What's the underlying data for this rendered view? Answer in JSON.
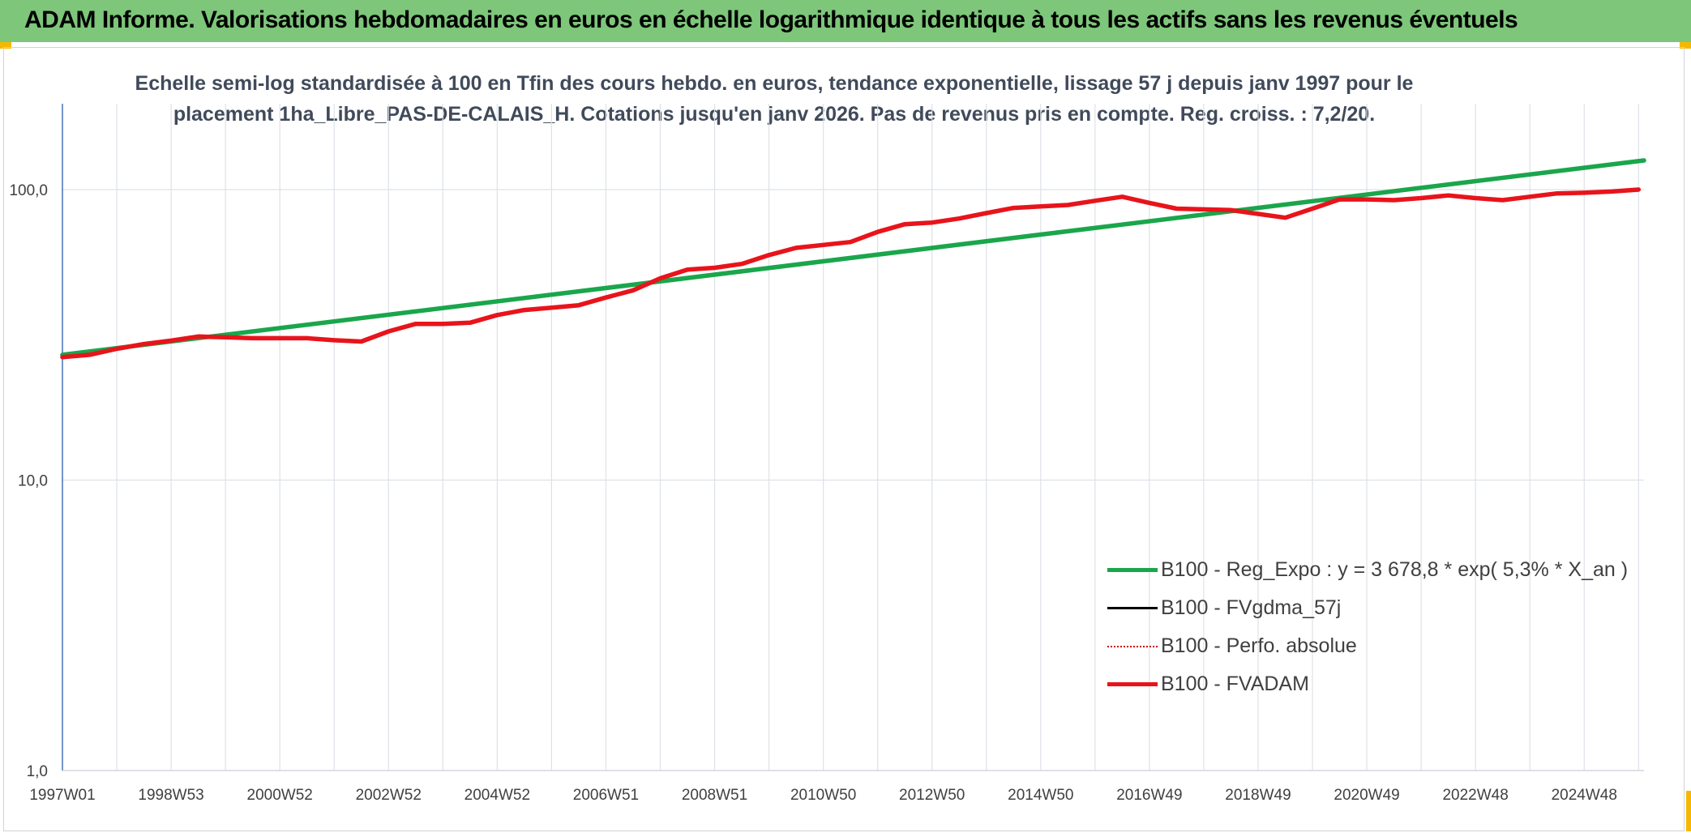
{
  "header": {
    "title": "ADAM Informe. Valorisations hebdomadaires en euros en échelle logarithmique identique à tous les actifs sans les revenus éventuels"
  },
  "colors": {
    "header_bg": "#7dc67a",
    "accent_corner": "#f5b800",
    "reg_expo": "#1aa64b",
    "fvgdma": "#000000",
    "perfo": "#cc0000",
    "fvadam": "#e8141b",
    "grid": "#dde2e8",
    "axis": "#4a72b8"
  },
  "chart_data": {
    "type": "line",
    "title_lines": [
      "Echelle semi-log standardisée à 100 en Tfin des cours hebdo. en euros, tendance exponentielle, lissage 57 j depuis janv 1997 pour le",
      "placement 1ha_Libre_PAS-DE-CALAIS_H. Cotations jusqu'en janv 2026. Pas de revenus pris en compte. Reg. croiss. : 7,2/20."
    ],
    "y_scale": "log",
    "ylim": [
      1,
      200
    ],
    "y_ticks": [
      {
        "value": 1,
        "label": "1,0"
      },
      {
        "value": 10,
        "label": "10,0"
      },
      {
        "value": 100,
        "label": "100,0"
      }
    ],
    "xlim": [
      1997.0,
      2026.1
    ],
    "x_ticks": [
      {
        "pos": 1997.0,
        "label": "1997W01"
      },
      {
        "pos": 1999.0,
        "label": "1998W53"
      },
      {
        "pos": 2001.0,
        "label": "2000W52"
      },
      {
        "pos": 2003.0,
        "label": "2002W52"
      },
      {
        "pos": 2005.0,
        "label": "2004W52"
      },
      {
        "pos": 2007.0,
        "label": "2006W51"
      },
      {
        "pos": 2009.0,
        "label": "2008W51"
      },
      {
        "pos": 2011.0,
        "label": "2010W50"
      },
      {
        "pos": 2013.0,
        "label": "2012W50"
      },
      {
        "pos": 2015.0,
        "label": "2014W50"
      },
      {
        "pos": 2017.0,
        "label": "2016W49"
      },
      {
        "pos": 2019.0,
        "label": "2018W49"
      },
      {
        "pos": 2021.0,
        "label": "2020W49"
      },
      {
        "pos": 2023.0,
        "label": "2022W48"
      },
      {
        "pos": 2025.0,
        "label": "2024W48"
      }
    ],
    "minor_grid_step": 1,
    "series": [
      {
        "name": "B100 - Reg_Expo : y = 3 678,8 * exp( 5,3% *  X_an )",
        "key": "reg_expo",
        "style": "solid",
        "x": [
          1997.0,
          2026.1
        ],
        "y": [
          27.0,
          126.0
        ]
      },
      {
        "name": "B100 - FVgdma_57j",
        "key": "fvgdma",
        "style": "solid",
        "x": [],
        "y": []
      },
      {
        "name": "B100 - Perfo. absolue",
        "key": "perfo",
        "style": "dotted",
        "x": [],
        "y": []
      },
      {
        "name": "B100 - FVADAM",
        "key": "fvadam",
        "style": "solid",
        "x": [
          1997.0,
          1997.5,
          1998.0,
          1998.5,
          1999.0,
          1999.5,
          2000.0,
          2000.5,
          2001.0,
          2001.5,
          2002.0,
          2002.5,
          2003.0,
          2003.5,
          2004.0,
          2004.5,
          2005.0,
          2005.5,
          2006.0,
          2006.5,
          2007.0,
          2007.5,
          2008.0,
          2008.5,
          2009.0,
          2009.5,
          2010.0,
          2010.5,
          2011.0,
          2011.5,
          2012.0,
          2012.5,
          2013.0,
          2013.5,
          2014.0,
          2014.5,
          2015.0,
          2015.5,
          2016.0,
          2016.5,
          2017.0,
          2017.5,
          2018.0,
          2018.5,
          2019.0,
          2019.5,
          2020.0,
          2020.5,
          2021.0,
          2021.5,
          2022.0,
          2022.5,
          2023.0,
          2023.5,
          2024.0,
          2024.5,
          2025.0,
          2025.5,
          2026.0
        ],
        "y": [
          26.5,
          27.0,
          28.3,
          29.4,
          30.2,
          31.2,
          31.0,
          30.8,
          30.8,
          30.8,
          30.3,
          30.0,
          32.5,
          34.5,
          34.5,
          34.8,
          37.0,
          38.5,
          39.2,
          40.0,
          42.5,
          45.0,
          49.5,
          53.0,
          53.8,
          55.5,
          59.5,
          63.0,
          64.5,
          66.0,
          71.5,
          76.0,
          77.0,
          79.5,
          83.0,
          86.5,
          87.5,
          88.5,
          91.5,
          94.5,
          90.0,
          86.0,
          85.5,
          85.0,
          82.5,
          80.0,
          86.0,
          92.5,
          92.5,
          92.0,
          93.5,
          95.5,
          93.5,
          92.0,
          94.5,
          97.0,
          97.5,
          98.5,
          100.0
        ]
      }
    ],
    "legend_position": "right-middle",
    "xlabel": "",
    "ylabel": ""
  }
}
